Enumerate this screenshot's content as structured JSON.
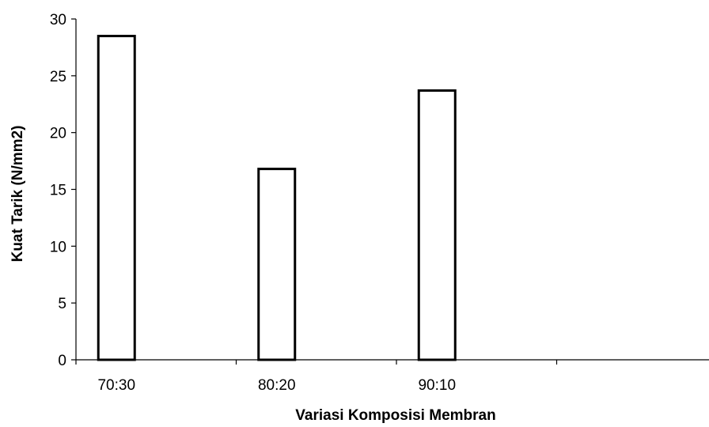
{
  "chart_data": {
    "type": "bar",
    "categories": [
      "70:30",
      "80:20",
      "90:10",
      ""
    ],
    "values": [
      28.5,
      16.8,
      23.7,
      null
    ],
    "xlabel": "Variasi Komposisi Membran",
    "ylabel": "Kuat Tarik (N/mm2)",
    "ylim": [
      0,
      30
    ],
    "yticks": [
      0,
      5,
      10,
      15,
      20,
      25,
      30
    ],
    "grid": false,
    "legend": "none",
    "bar_fill": "#ffffff",
    "bar_stroke": "#000000"
  }
}
